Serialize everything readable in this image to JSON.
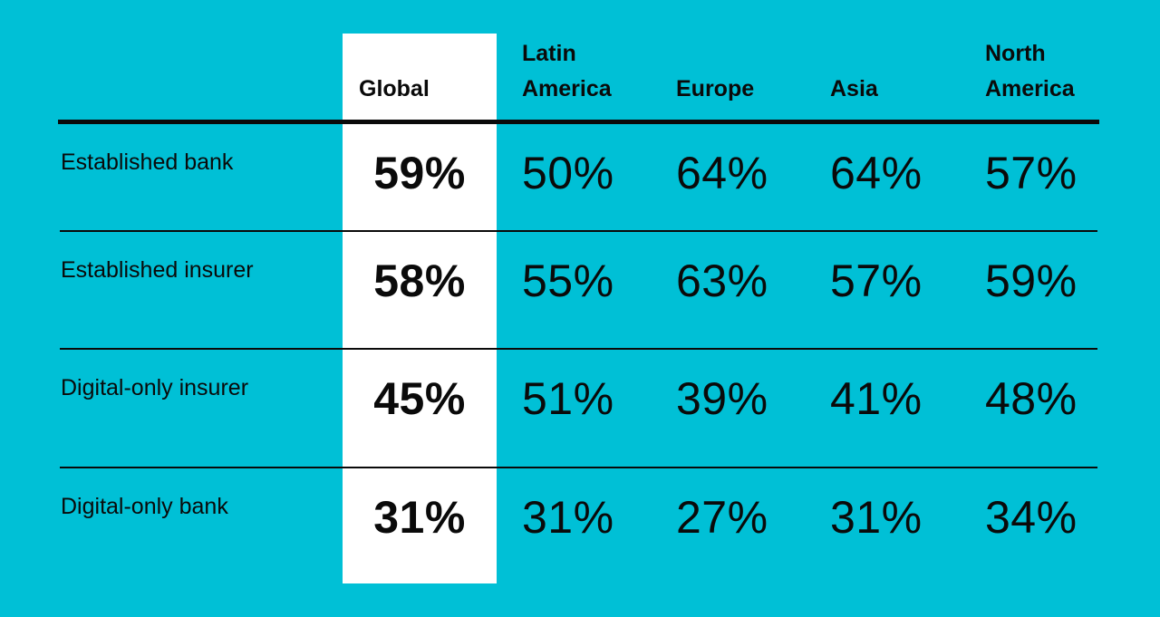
{
  "chart_data": {
    "type": "table",
    "columns": [
      "Global",
      "Latin\nAmerica",
      "Europe",
      "Asia",
      "North\nAmerica"
    ],
    "rows": [
      {
        "label": "Established bank",
        "values": [
          "59%",
          "50%",
          "64%",
          "64%",
          "57%"
        ]
      },
      {
        "label": "Established insurer",
        "values": [
          "58%",
          "55%",
          "63%",
          "57%",
          "59%"
        ]
      },
      {
        "label": "Digital-only insurer",
        "values": [
          "45%",
          "51%",
          "39%",
          "41%",
          "48%"
        ]
      },
      {
        "label": "Digital-only bank",
        "values": [
          "31%",
          "31%",
          "27%",
          "31%",
          "34%"
        ]
      }
    ],
    "highlight_column": "Global"
  },
  "colors": {
    "background": "#00c0d6",
    "highlight_column": "#ffffff",
    "text": "#0a0a0a"
  }
}
